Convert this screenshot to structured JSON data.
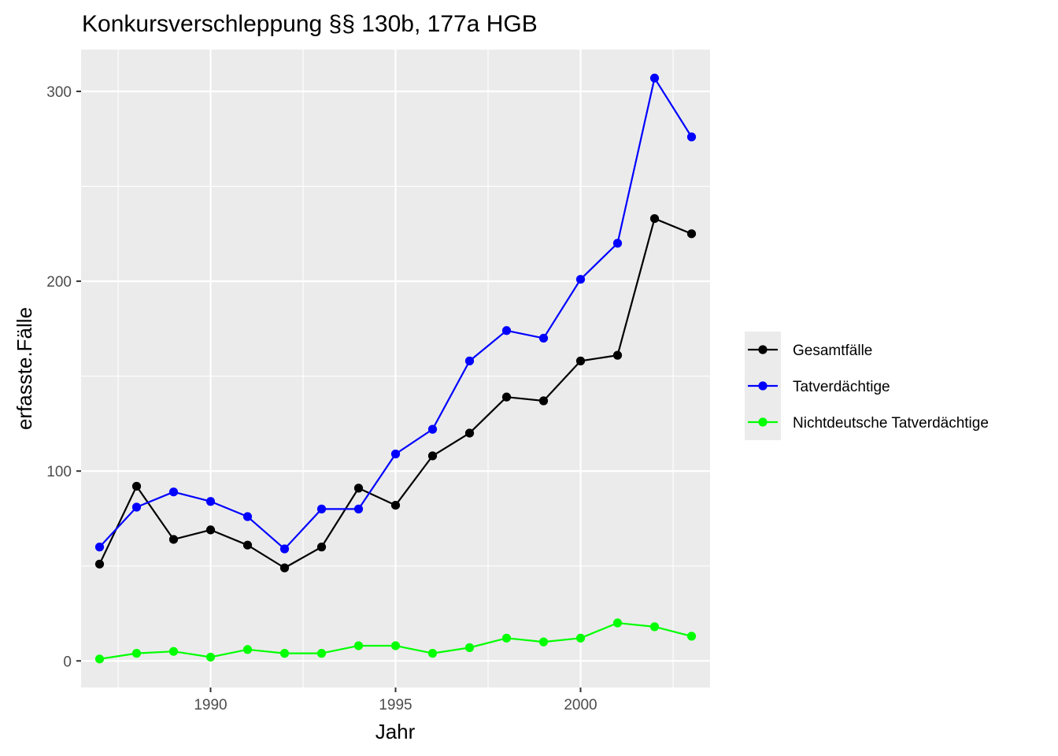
{
  "chart_data": {
    "type": "line",
    "title": "Konkursverschleppung §§ 130b, 177a HGB",
    "xlabel": "Jahr",
    "ylabel": "erfasste.Fälle",
    "xlim": [
      1986.5,
      2003.5
    ],
    "ylim": [
      -14,
      322
    ],
    "x_ticks": [
      1990,
      1995,
      2000
    ],
    "x_tick_labels": [
      "1990",
      "1995",
      "2000"
    ],
    "y_ticks": [
      0,
      100,
      200,
      300
    ],
    "y_tick_labels": [
      "0",
      "100",
      "200",
      "300"
    ],
    "grid": true,
    "legend_position": "right",
    "x": [
      1987,
      1988,
      1989,
      1990,
      1991,
      1992,
      1993,
      1994,
      1995,
      1996,
      1997,
      1998,
      1999,
      2000,
      2001,
      2002,
      2003
    ],
    "series": [
      {
        "name": "Gesamtfälle",
        "color": "#000000",
        "values": [
          51,
          92,
          64,
          69,
          61,
          49,
          60,
          91,
          82,
          108,
          120,
          139,
          137,
          158,
          161,
          233,
          225
        ]
      },
      {
        "name": "Tatverdächtige",
        "color": "#0000ff",
        "values": [
          60,
          81,
          89,
          84,
          76,
          59,
          80,
          80,
          109,
          122,
          158,
          174,
          170,
          201,
          220,
          307,
          276
        ]
      },
      {
        "name": "Nichtdeutsche Tatverdächtige",
        "color": "#00ff00",
        "values": [
          1,
          4,
          5,
          2,
          6,
          4,
          4,
          8,
          8,
          4,
          7,
          12,
          10,
          12,
          20,
          18,
          13
        ]
      }
    ]
  }
}
